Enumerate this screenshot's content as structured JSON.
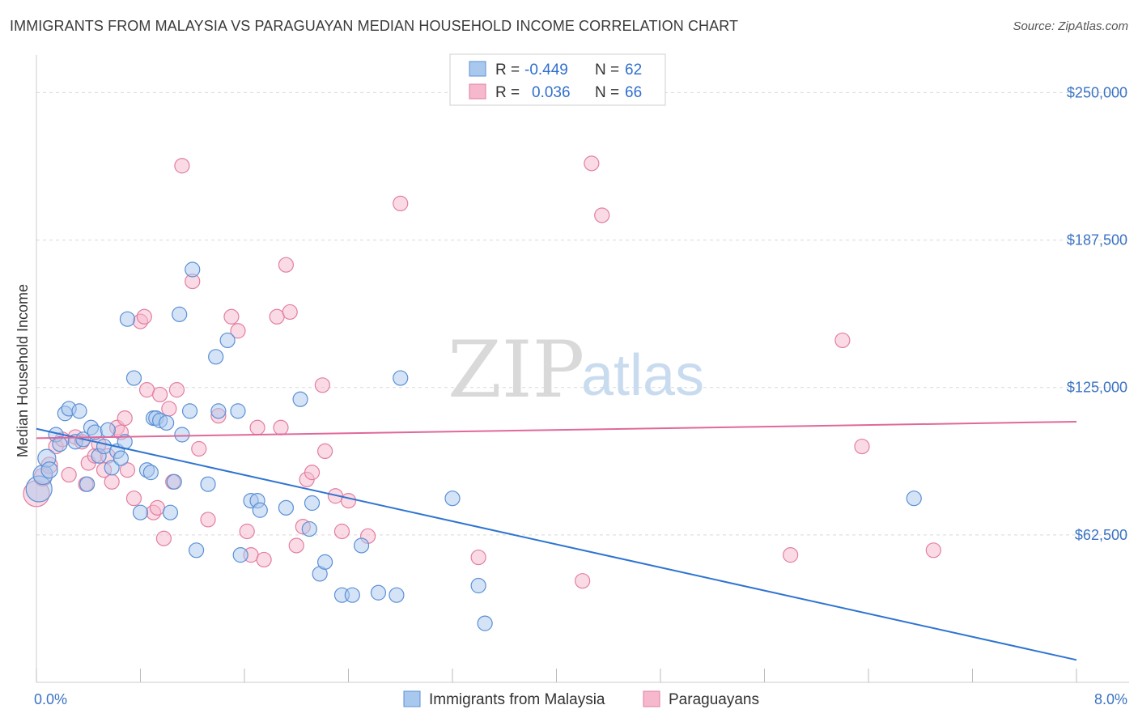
{
  "header": {
    "title": "IMMIGRANTS FROM MALAYSIA VS PARAGUAYAN MEDIAN HOUSEHOLD INCOME CORRELATION CHART",
    "source": "Source: ZipAtlas.com"
  },
  "watermark": {
    "zip": "ZIP",
    "atlas": "atlas"
  },
  "legend_top": {
    "rows": [
      {
        "r_label": "R =",
        "r_value": "-0.449",
        "n_label": "N =",
        "n_value": "62"
      },
      {
        "r_label": "R =",
        "r_value": "0.036",
        "n_label": "N =",
        "n_value": "66"
      }
    ]
  },
  "colors": {
    "blue_fill": "#a9c8ee",
    "blue_stroke": "#5b90d6",
    "blue_line": "#2f74d0",
    "pink_fill": "#f6b8cc",
    "pink_stroke": "#e37ea0",
    "pink_line": "#e0689a",
    "grid": "#d9d9d9",
    "tick_label": "#3a73c4"
  },
  "chart_data": {
    "type": "scatter",
    "title": "IMMIGRANTS FROM MALAYSIA VS PARAGUAYAN MEDIAN HOUSEHOLD INCOME CORRELATION CHART",
    "xlabel": "",
    "ylabel": "Median Household Income",
    "xlim": [
      0,
      8
    ],
    "ylim": [
      0,
      262500
    ],
    "x_tick_labels": [
      "0.0%",
      "8.0%"
    ],
    "y_ticks": [
      62500,
      125000,
      187500,
      250000
    ],
    "y_tick_labels": [
      "$62,500",
      "$125,000",
      "$187,500",
      "$250,000"
    ],
    "grid": true,
    "legend_placement": "bottom-center",
    "series": [
      {
        "name": "Immigrants from Malaysia",
        "color": "#5b90d6",
        "R": -0.449,
        "N": 62,
        "trend": {
          "x": [
            0.0,
            8.0
          ],
          "y": [
            107500,
            9500
          ]
        },
        "points": [
          [
            0.02,
            82000,
            16
          ],
          [
            0.05,
            88000,
            12
          ],
          [
            0.08,
            95000,
            11
          ],
          [
            0.1,
            90000,
            10
          ],
          [
            0.15,
            105000,
            9
          ],
          [
            0.18,
            101000,
            9
          ],
          [
            0.22,
            114000,
            9
          ],
          [
            0.25,
            116000,
            9
          ],
          [
            0.3,
            102000,
            9
          ],
          [
            0.33,
            115000,
            9
          ],
          [
            0.36,
            103000,
            9
          ],
          [
            0.39,
            84000,
            9
          ],
          [
            0.42,
            108000,
            9
          ],
          [
            0.45,
            106000,
            9
          ],
          [
            0.48,
            96000,
            9
          ],
          [
            0.52,
            100000,
            9
          ],
          [
            0.55,
            107000,
            9
          ],
          [
            0.58,
            91000,
            9
          ],
          [
            0.62,
            98000,
            9
          ],
          [
            0.65,
            95000,
            9
          ],
          [
            0.68,
            102000,
            9
          ],
          [
            0.7,
            154000,
            9
          ],
          [
            0.75,
            129000,
            9
          ],
          [
            0.8,
            72000,
            9
          ],
          [
            0.85,
            90000,
            9
          ],
          [
            0.88,
            89000,
            9
          ],
          [
            0.9,
            112000,
            9
          ],
          [
            0.92,
            112000,
            9
          ],
          [
            0.95,
            111000,
            9
          ],
          [
            1.0,
            110000,
            9
          ],
          [
            1.03,
            72000,
            9
          ],
          [
            1.06,
            85000,
            9
          ],
          [
            1.1,
            156000,
            9
          ],
          [
            1.12,
            105000,
            9
          ],
          [
            1.18,
            115000,
            9
          ],
          [
            1.2,
            175000,
            9
          ],
          [
            1.23,
            56000,
            9
          ],
          [
            1.32,
            84000,
            9
          ],
          [
            1.38,
            138000,
            9
          ],
          [
            1.4,
            115000,
            9
          ],
          [
            1.47,
            145000,
            9
          ],
          [
            1.55,
            115000,
            9
          ],
          [
            1.57,
            54000,
            9
          ],
          [
            1.65,
            77000,
            9
          ],
          [
            1.7,
            77000,
            9
          ],
          [
            1.72,
            73000,
            9
          ],
          [
            1.92,
            74000,
            9
          ],
          [
            2.03,
            120000,
            9
          ],
          [
            2.1,
            65000,
            9
          ],
          [
            2.12,
            76000,
            9
          ],
          [
            2.18,
            46000,
            9
          ],
          [
            2.22,
            51000,
            9
          ],
          [
            2.35,
            37000,
            9
          ],
          [
            2.43,
            37000,
            9
          ],
          [
            2.5,
            58000,
            9
          ],
          [
            2.63,
            38000,
            9
          ],
          [
            2.77,
            37000,
            9
          ],
          [
            2.8,
            129000,
            9
          ],
          [
            3.2,
            78000,
            9
          ],
          [
            3.4,
            41000,
            9
          ],
          [
            3.45,
            25000,
            9
          ],
          [
            6.75,
            78000,
            9
          ]
        ]
      },
      {
        "name": "Paraguayans",
        "color": "#e37ea0",
        "R": 0.036,
        "N": 66,
        "trend": {
          "x": [
            0.0,
            8.0
          ],
          "y": [
            103500,
            110500
          ]
        },
        "points": [
          [
            0.0,
            80000,
            16
          ],
          [
            0.05,
            87000,
            11
          ],
          [
            0.1,
            92000,
            10
          ],
          [
            0.15,
            100000,
            9
          ],
          [
            0.2,
            103000,
            9
          ],
          [
            0.25,
            88000,
            9
          ],
          [
            0.3,
            104000,
            9
          ],
          [
            0.35,
            102000,
            9
          ],
          [
            0.38,
            84000,
            9
          ],
          [
            0.4,
            93000,
            9
          ],
          [
            0.45,
            96000,
            9
          ],
          [
            0.48,
            101000,
            9
          ],
          [
            0.52,
            90000,
            9
          ],
          [
            0.55,
            96000,
            9
          ],
          [
            0.58,
            85000,
            9
          ],
          [
            0.62,
            108000,
            9
          ],
          [
            0.65,
            106000,
            9
          ],
          [
            0.68,
            112000,
            9
          ],
          [
            0.7,
            90000,
            9
          ],
          [
            0.75,
            78000,
            9
          ],
          [
            0.8,
            153000,
            9
          ],
          [
            0.83,
            155000,
            9
          ],
          [
            0.85,
            124000,
            9
          ],
          [
            0.9,
            72000,
            9
          ],
          [
            0.93,
            74000,
            9
          ],
          [
            0.95,
            122000,
            9
          ],
          [
            0.98,
            61000,
            9
          ],
          [
            1.02,
            116000,
            9
          ],
          [
            1.05,
            85000,
            9
          ],
          [
            1.08,
            124000,
            9
          ],
          [
            1.12,
            219000,
            9
          ],
          [
            1.2,
            170000,
            9
          ],
          [
            1.25,
            99000,
            9
          ],
          [
            1.32,
            69000,
            9
          ],
          [
            1.4,
            113000,
            9
          ],
          [
            1.5,
            155000,
            9
          ],
          [
            1.55,
            149000,
            9
          ],
          [
            1.62,
            64000,
            9
          ],
          [
            1.65,
            54000,
            9
          ],
          [
            1.7,
            108000,
            9
          ],
          [
            1.75,
            52000,
            9
          ],
          [
            1.85,
            155000,
            9
          ],
          [
            1.88,
            108000,
            9
          ],
          [
            1.92,
            177000,
            9
          ],
          [
            1.95,
            157000,
            9
          ],
          [
            2.0,
            58000,
            9
          ],
          [
            2.05,
            66000,
            9
          ],
          [
            2.08,
            86000,
            9
          ],
          [
            2.12,
            89000,
            9
          ],
          [
            2.2,
            126000,
            9
          ],
          [
            2.22,
            98000,
            9
          ],
          [
            2.3,
            79000,
            9
          ],
          [
            2.35,
            64000,
            9
          ],
          [
            2.4,
            77000,
            9
          ],
          [
            2.55,
            62000,
            9
          ],
          [
            2.8,
            203000,
            9
          ],
          [
            3.4,
            53000,
            9
          ],
          [
            4.2,
            43000,
            9
          ],
          [
            4.27,
            220000,
            9
          ],
          [
            4.35,
            198000,
            9
          ],
          [
            5.8,
            54000,
            9
          ],
          [
            6.2,
            145000,
            9
          ],
          [
            6.35,
            100000,
            9
          ],
          [
            6.4,
            100000,
            0
          ],
          [
            6.9,
            56000,
            9
          ],
          [
            6.95,
            56000,
            0
          ]
        ]
      }
    ]
  }
}
